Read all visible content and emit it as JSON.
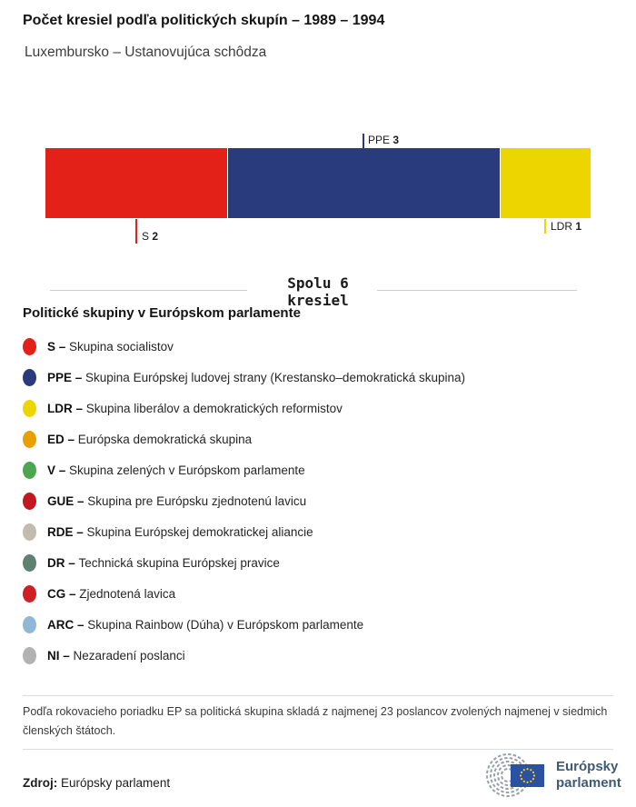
{
  "title": "Počet kresiel podľa politických skupín – 1989 – 1994",
  "subtitle": "Luxembursko – Ustanovujúca schôdza",
  "chart_data": {
    "type": "bar",
    "orientation": "horizontal-stacked",
    "title": "Počet kresiel podľa politických skupín – 1989 – 1994",
    "total_seats": 6,
    "total_label_line1": "Spolu 6",
    "total_label_line2": "kresiel",
    "series": [
      {
        "abbr": "S",
        "name": "Skupina socialistov",
        "seats": 2,
        "color": "#e32119",
        "label_position": "below"
      },
      {
        "abbr": "PPE",
        "name": "Skupina Európskej ludovej strany (Krestansko–demokratická skupina)",
        "seats": 3,
        "color": "#2a3b7d",
        "label_position": "above"
      },
      {
        "abbr": "LDR",
        "name": "Skupina liberálov a demokratických reformistov",
        "seats": 1,
        "color": "#edd500",
        "label_position": "below"
      }
    ]
  },
  "legend": {
    "heading": "Politické skupiny v Európskom parlamente",
    "items": [
      {
        "abbr": "S",
        "name": "Skupina socialistov",
        "color": "#e32119"
      },
      {
        "abbr": "PPE",
        "name": "Skupina Európskej ludovej strany (Krestansko–demokratická skupina)",
        "color": "#2a3b7d"
      },
      {
        "abbr": "LDR",
        "name": "Skupina liberálov a demokratických reformistov",
        "color": "#edd500"
      },
      {
        "abbr": "ED",
        "name": "Európska demokratická skupina",
        "color": "#e8a000"
      },
      {
        "abbr": "V",
        "name": "Skupina zelených v Európskom parlamente",
        "color": "#4ba64f"
      },
      {
        "abbr": "GUE",
        "name": "Skupina pre Európsku zjednotenú lavicu",
        "color": "#c3181f"
      },
      {
        "abbr": "RDE",
        "name": "Skupina Európskej demokratickej aliancie",
        "color": "#c2bcae"
      },
      {
        "abbr": "DR",
        "name": "Technická skupina Európskej pravice",
        "color": "#5f8072"
      },
      {
        "abbr": "CG",
        "name": "Zjednotená lavica",
        "color": "#cf2026"
      },
      {
        "abbr": "ARC",
        "name": "Skupina Rainbow (Dúha) v Európskom parlamente",
        "color": "#8fb8d6"
      },
      {
        "abbr": "NI",
        "name": "Nezaradení poslanci",
        "color": "#b2b2b2"
      }
    ]
  },
  "footnote": "Podľa rokovacieho poriadku EP sa politická skupina skladá z najmenej 23 poslancov zvolených najmenej v siedmich členských štátoch.",
  "source": {
    "label": "Zdroj:",
    "value": "Európsky parlament"
  },
  "logo": {
    "line1": "Európsky",
    "line2": "parlament",
    "flag_color": "#2b52a0",
    "star_color": "#f7d117",
    "arc_color": "#99a1a7"
  }
}
